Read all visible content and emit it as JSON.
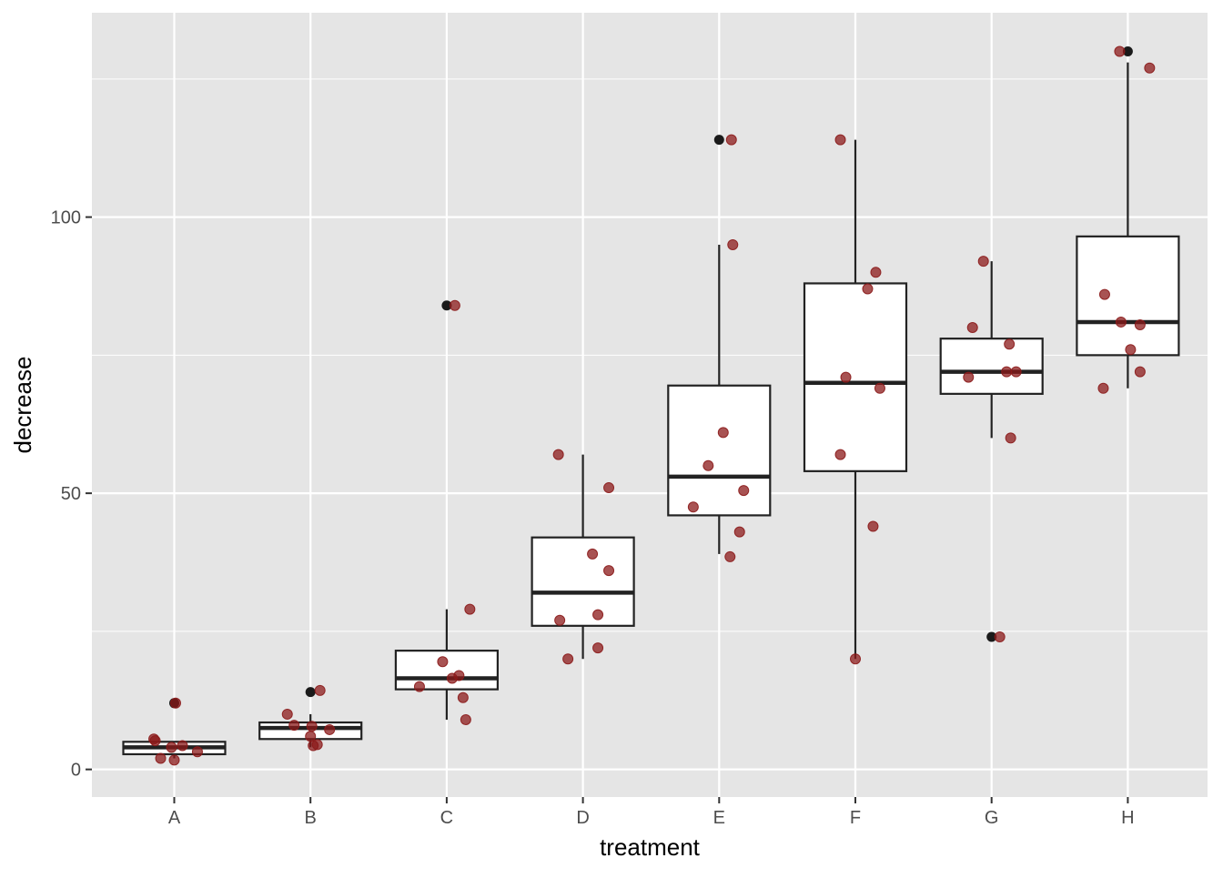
{
  "chart_data": {
    "type": "boxplot",
    "xlabel": "treatment",
    "ylabel": "decrease",
    "ylim": [
      -5,
      137
    ],
    "y_ticks": [
      0,
      50,
      100
    ],
    "y_tick_labels": [
      "0",
      "50",
      "100"
    ],
    "categories": [
      "A",
      "B",
      "C",
      "D",
      "E",
      "F",
      "G",
      "H"
    ],
    "grid": true,
    "colors": {
      "panel_background": "#e5e5e5",
      "grid": "#ffffff",
      "box_fill": "#ffffff",
      "box_line": "#222222",
      "outlier": "#1a1a1a",
      "jitter_point": "#8b1a1a"
    },
    "boxes": [
      {
        "category": "A",
        "q1": 2.75,
        "median": 4.0,
        "q3": 5.0,
        "whisker_low": 2.0,
        "whisker_high": 5.0,
        "outliers": [
          12
        ]
      },
      {
        "category": "B",
        "q1": 5.5,
        "median": 7.5,
        "q3": 8.5,
        "whisker_low": 4.0,
        "whisker_high": 10.0,
        "outliers": [
          14
        ]
      },
      {
        "category": "C",
        "q1": 14.5,
        "median": 16.5,
        "q3": 21.5,
        "whisker_low": 9.0,
        "whisker_high": 29.0,
        "outliers": [
          84
        ]
      },
      {
        "category": "D",
        "q1": 26.0,
        "median": 32.0,
        "q3": 42.0,
        "whisker_low": 20.0,
        "whisker_high": 57.0,
        "outliers": []
      },
      {
        "category": "E",
        "q1": 46.0,
        "median": 53.0,
        "q3": 69.5,
        "whisker_low": 39.0,
        "whisker_high": 95.0,
        "outliers": [
          114
        ]
      },
      {
        "category": "F",
        "q1": 54.0,
        "median": 70.0,
        "q3": 88.0,
        "whisker_low": 20.0,
        "whisker_high": 114.0,
        "outliers": []
      },
      {
        "category": "G",
        "q1": 68.0,
        "median": 72.0,
        "q3": 78.0,
        "whisker_low": 60.0,
        "whisker_high": 92.0,
        "outliers": [
          24
        ]
      },
      {
        "category": "H",
        "q1": 75.0,
        "median": 81.0,
        "q3": 96.5,
        "whisker_low": 69.0,
        "whisker_high": 128.0,
        "outliers": [
          130
        ]
      }
    ],
    "points": [
      {
        "category": "A",
        "jitter": -0.15,
        "y": 5.5
      },
      {
        "category": "A",
        "jitter": -0.14,
        "y": 5.2
      },
      {
        "category": "A",
        "jitter": -0.1,
        "y": 2.0
      },
      {
        "category": "A",
        "jitter": -0.02,
        "y": 4.0
      },
      {
        "category": "A",
        "jitter": 0.0,
        "y": 1.7
      },
      {
        "category": "A",
        "jitter": 0.01,
        "y": 12.0
      },
      {
        "category": "A",
        "jitter": 0.06,
        "y": 4.3
      },
      {
        "category": "A",
        "jitter": 0.17,
        "y": 3.2
      },
      {
        "category": "B",
        "jitter": -0.17,
        "y": 10.0
      },
      {
        "category": "B",
        "jitter": -0.12,
        "y": 8.0
      },
      {
        "category": "B",
        "jitter": 0.0,
        "y": 6.0
      },
      {
        "category": "B",
        "jitter": 0.01,
        "y": 7.8
      },
      {
        "category": "B",
        "jitter": 0.02,
        "y": 4.3
      },
      {
        "category": "B",
        "jitter": 0.05,
        "y": 4.5
      },
      {
        "category": "B",
        "jitter": 0.07,
        "y": 14.3
      },
      {
        "category": "B",
        "jitter": 0.14,
        "y": 7.2
      },
      {
        "category": "C",
        "jitter": -0.2,
        "y": 15.0
      },
      {
        "category": "C",
        "jitter": -0.03,
        "y": 19.5
      },
      {
        "category": "C",
        "jitter": 0.04,
        "y": 16.5
      },
      {
        "category": "C",
        "jitter": 0.09,
        "y": 17.0
      },
      {
        "category": "C",
        "jitter": 0.12,
        "y": 13.0
      },
      {
        "category": "C",
        "jitter": 0.14,
        "y": 9.0
      },
      {
        "category": "C",
        "jitter": 0.17,
        "y": 29.0
      },
      {
        "category": "C",
        "jitter": 0.06,
        "y": 84.0
      },
      {
        "category": "D",
        "jitter": -0.18,
        "y": 57.0
      },
      {
        "category": "D",
        "jitter": -0.17,
        "y": 27.0
      },
      {
        "category": "D",
        "jitter": -0.11,
        "y": 20.0
      },
      {
        "category": "D",
        "jitter": 0.07,
        "y": 39.0
      },
      {
        "category": "D",
        "jitter": 0.11,
        "y": 28.0
      },
      {
        "category": "D",
        "jitter": 0.11,
        "y": 22.0
      },
      {
        "category": "D",
        "jitter": 0.19,
        "y": 36.0
      },
      {
        "category": "D",
        "jitter": 0.19,
        "y": 51.0
      },
      {
        "category": "E",
        "jitter": -0.19,
        "y": 47.5
      },
      {
        "category": "E",
        "jitter": -0.08,
        "y": 55.0
      },
      {
        "category": "E",
        "jitter": 0.03,
        "y": 61.0
      },
      {
        "category": "E",
        "jitter": 0.08,
        "y": 38.5
      },
      {
        "category": "E",
        "jitter": 0.09,
        "y": 114.0
      },
      {
        "category": "E",
        "jitter": 0.1,
        "y": 95.0
      },
      {
        "category": "E",
        "jitter": 0.15,
        "y": 43.0
      },
      {
        "category": "E",
        "jitter": 0.18,
        "y": 50.5
      },
      {
        "category": "F",
        "jitter": -0.11,
        "y": 114.0
      },
      {
        "category": "F",
        "jitter": -0.11,
        "y": 57.0
      },
      {
        "category": "F",
        "jitter": -0.07,
        "y": 71.0
      },
      {
        "category": "F",
        "jitter": 0.0,
        "y": 20.0
      },
      {
        "category": "F",
        "jitter": 0.09,
        "y": 87.0
      },
      {
        "category": "F",
        "jitter": 0.13,
        "y": 44.0
      },
      {
        "category": "F",
        "jitter": 0.15,
        "y": 90.0
      },
      {
        "category": "F",
        "jitter": 0.18,
        "y": 69.0
      },
      {
        "category": "G",
        "jitter": -0.17,
        "y": 71.0
      },
      {
        "category": "G",
        "jitter": -0.14,
        "y": 80.0
      },
      {
        "category": "G",
        "jitter": -0.06,
        "y": 92.0
      },
      {
        "category": "G",
        "jitter": 0.06,
        "y": 24.0
      },
      {
        "category": "G",
        "jitter": 0.11,
        "y": 72.0
      },
      {
        "category": "G",
        "jitter": 0.13,
        "y": 77.0
      },
      {
        "category": "G",
        "jitter": 0.14,
        "y": 60.0
      },
      {
        "category": "G",
        "jitter": 0.18,
        "y": 72.0
      },
      {
        "category": "H",
        "jitter": -0.18,
        "y": 69.0
      },
      {
        "category": "H",
        "jitter": -0.17,
        "y": 86.0
      },
      {
        "category": "H",
        "jitter": -0.06,
        "y": 130.0
      },
      {
        "category": "H",
        "jitter": -0.05,
        "y": 81.0
      },
      {
        "category": "H",
        "jitter": 0.02,
        "y": 76.0
      },
      {
        "category": "H",
        "jitter": 0.09,
        "y": 80.5
      },
      {
        "category": "H",
        "jitter": 0.09,
        "y": 72.0
      },
      {
        "category": "H",
        "jitter": 0.16,
        "y": 127.0
      }
    ]
  }
}
